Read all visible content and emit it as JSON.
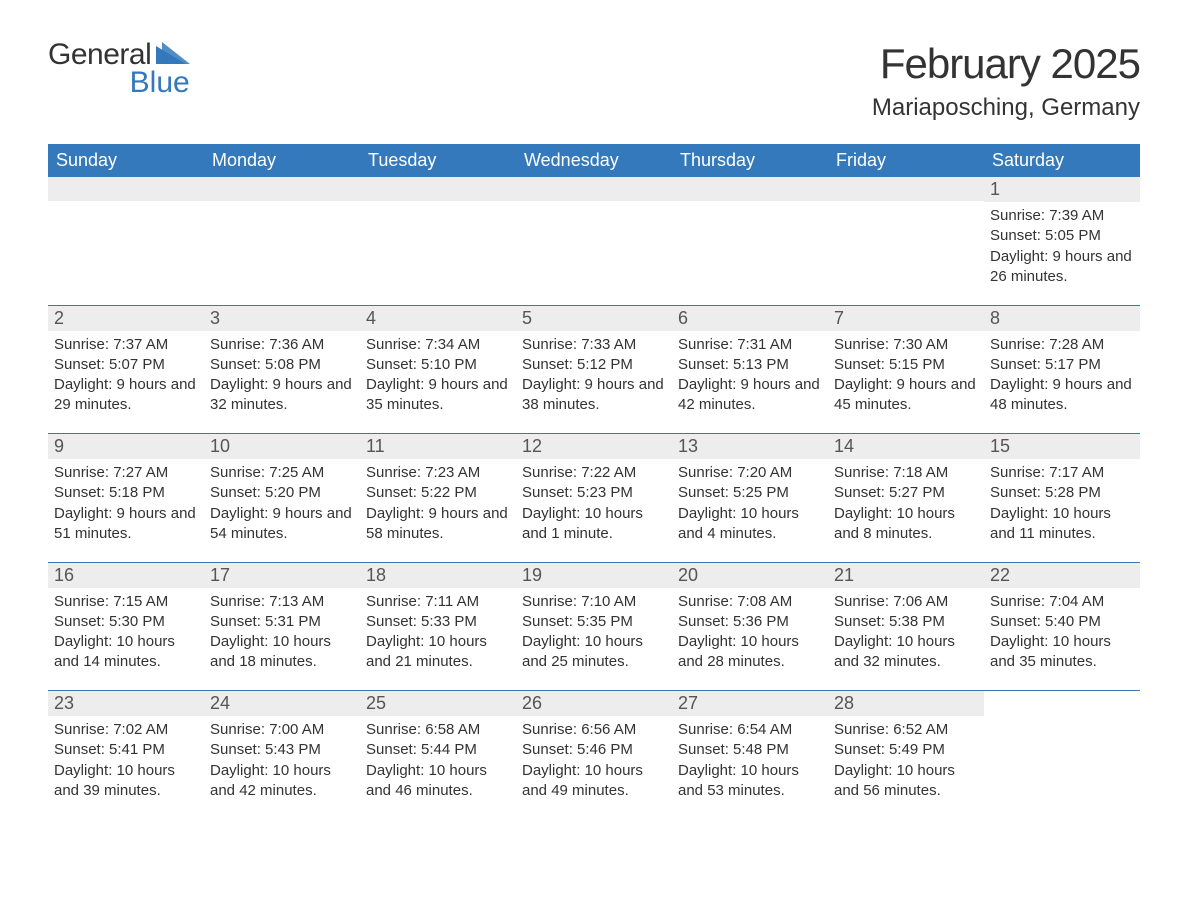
{
  "brand": {
    "name_part1": "General",
    "name_part2": "Blue",
    "color_dark": "#333333",
    "color_blue": "#3379bb"
  },
  "header": {
    "month_title": "February 2025",
    "location": "Mariaposching, Germany"
  },
  "style": {
    "header_bg": "#3379bb",
    "header_text": "#ffffff",
    "band_bg": "#ededed",
    "body_text": "#333333",
    "page_bg": "#ffffff",
    "title_fontsize": 42,
    "location_fontsize": 24,
    "dayhead_fontsize": 18,
    "detail_fontsize": 15
  },
  "days_of_week": [
    "Sunday",
    "Monday",
    "Tuesday",
    "Wednesday",
    "Thursday",
    "Friday",
    "Saturday"
  ],
  "weeks": [
    [
      null,
      null,
      null,
      null,
      null,
      null,
      {
        "n": "1",
        "sunrise": "7:39 AM",
        "sunset": "5:05 PM",
        "daylight": "9 hours and 26 minutes."
      }
    ],
    [
      {
        "n": "2",
        "sunrise": "7:37 AM",
        "sunset": "5:07 PM",
        "daylight": "9 hours and 29 minutes."
      },
      {
        "n": "3",
        "sunrise": "7:36 AM",
        "sunset": "5:08 PM",
        "daylight": "9 hours and 32 minutes."
      },
      {
        "n": "4",
        "sunrise": "7:34 AM",
        "sunset": "5:10 PM",
        "daylight": "9 hours and 35 minutes."
      },
      {
        "n": "5",
        "sunrise": "7:33 AM",
        "sunset": "5:12 PM",
        "daylight": "9 hours and 38 minutes."
      },
      {
        "n": "6",
        "sunrise": "7:31 AM",
        "sunset": "5:13 PM",
        "daylight": "9 hours and 42 minutes."
      },
      {
        "n": "7",
        "sunrise": "7:30 AM",
        "sunset": "5:15 PM",
        "daylight": "9 hours and 45 minutes."
      },
      {
        "n": "8",
        "sunrise": "7:28 AM",
        "sunset": "5:17 PM",
        "daylight": "9 hours and 48 minutes."
      }
    ],
    [
      {
        "n": "9",
        "sunrise": "7:27 AM",
        "sunset": "5:18 PM",
        "daylight": "9 hours and 51 minutes."
      },
      {
        "n": "10",
        "sunrise": "7:25 AM",
        "sunset": "5:20 PM",
        "daylight": "9 hours and 54 minutes."
      },
      {
        "n": "11",
        "sunrise": "7:23 AM",
        "sunset": "5:22 PM",
        "daylight": "9 hours and 58 minutes."
      },
      {
        "n": "12",
        "sunrise": "7:22 AM",
        "sunset": "5:23 PM",
        "daylight": "10 hours and 1 minute."
      },
      {
        "n": "13",
        "sunrise": "7:20 AM",
        "sunset": "5:25 PM",
        "daylight": "10 hours and 4 minutes."
      },
      {
        "n": "14",
        "sunrise": "7:18 AM",
        "sunset": "5:27 PM",
        "daylight": "10 hours and 8 minutes."
      },
      {
        "n": "15",
        "sunrise": "7:17 AM",
        "sunset": "5:28 PM",
        "daylight": "10 hours and 11 minutes."
      }
    ],
    [
      {
        "n": "16",
        "sunrise": "7:15 AM",
        "sunset": "5:30 PM",
        "daylight": "10 hours and 14 minutes."
      },
      {
        "n": "17",
        "sunrise": "7:13 AM",
        "sunset": "5:31 PM",
        "daylight": "10 hours and 18 minutes."
      },
      {
        "n": "18",
        "sunrise": "7:11 AM",
        "sunset": "5:33 PM",
        "daylight": "10 hours and 21 minutes."
      },
      {
        "n": "19",
        "sunrise": "7:10 AM",
        "sunset": "5:35 PM",
        "daylight": "10 hours and 25 minutes."
      },
      {
        "n": "20",
        "sunrise": "7:08 AM",
        "sunset": "5:36 PM",
        "daylight": "10 hours and 28 minutes."
      },
      {
        "n": "21",
        "sunrise": "7:06 AM",
        "sunset": "5:38 PM",
        "daylight": "10 hours and 32 minutes."
      },
      {
        "n": "22",
        "sunrise": "7:04 AM",
        "sunset": "5:40 PM",
        "daylight": "10 hours and 35 minutes."
      }
    ],
    [
      {
        "n": "23",
        "sunrise": "7:02 AM",
        "sunset": "5:41 PM",
        "daylight": "10 hours and 39 minutes."
      },
      {
        "n": "24",
        "sunrise": "7:00 AM",
        "sunset": "5:43 PM",
        "daylight": "10 hours and 42 minutes."
      },
      {
        "n": "25",
        "sunrise": "6:58 AM",
        "sunset": "5:44 PM",
        "daylight": "10 hours and 46 minutes."
      },
      {
        "n": "26",
        "sunrise": "6:56 AM",
        "sunset": "5:46 PM",
        "daylight": "10 hours and 49 minutes."
      },
      {
        "n": "27",
        "sunrise": "6:54 AM",
        "sunset": "5:48 PM",
        "daylight": "10 hours and 53 minutes."
      },
      {
        "n": "28",
        "sunrise": "6:52 AM",
        "sunset": "5:49 PM",
        "daylight": "10 hours and 56 minutes."
      },
      null
    ]
  ],
  "labels": {
    "sunrise": "Sunrise: ",
    "sunset": "Sunset: ",
    "daylight": "Daylight: "
  }
}
